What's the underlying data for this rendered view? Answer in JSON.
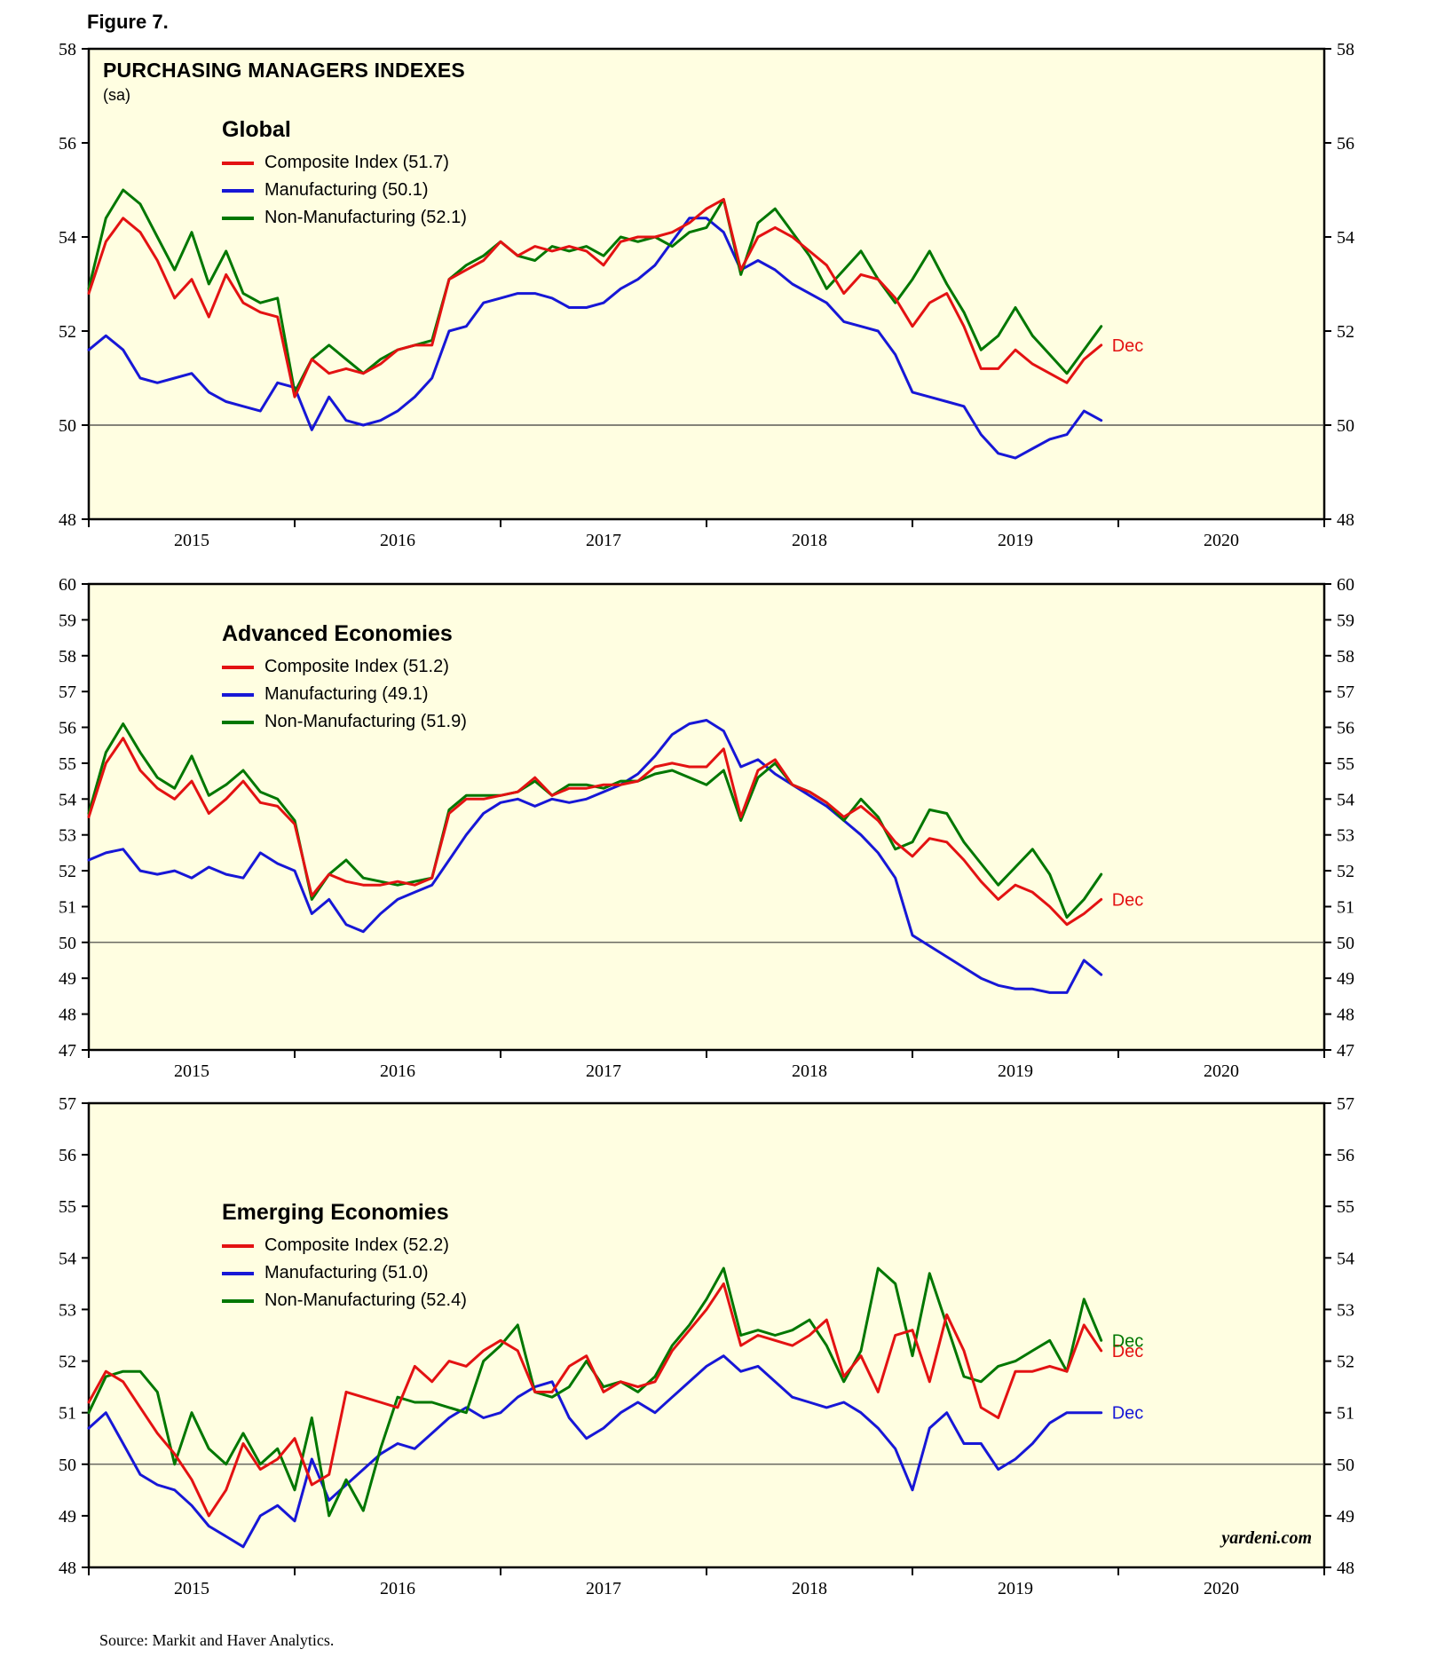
{
  "figure_label": "Figure 7.",
  "header": {
    "title": "PURCHASING MANAGERS INDEXES",
    "subtitle": "(sa)"
  },
  "source_line": "Source:  Markit and Haver Analytics.",
  "watermark": "yardeni.com",
  "colors": {
    "composite": "#e31212",
    "manufacturing": "#1717d6",
    "non_manufacturing": "#007700",
    "plot_bg": "#fffee1",
    "axis": "#000000",
    "zero_line": "#3a3a3a"
  },
  "x_axis": {
    "monthly_start": "2015-01",
    "monthly_end": "2019-12",
    "span_years": 6,
    "year_labels": [
      "2015",
      "2016",
      "2017",
      "2018",
      "2019",
      "2020"
    ]
  },
  "chart_data": [
    {
      "type": "line",
      "title": "Global",
      "ylim": [
        48,
        58
      ],
      "yticks": [
        48,
        50,
        52,
        54,
        56,
        58
      ],
      "hline": 50,
      "grid": false,
      "legend_position": "top-left-inside",
      "series": [
        {
          "name": "Composite Index",
          "legend": "Composite Index (51.7)",
          "color": "composite",
          "end_label": "Dec",
          "values": [
            52.8,
            53.9,
            54.4,
            54.1,
            53.5,
            52.7,
            53.1,
            52.3,
            53.2,
            52.6,
            52.4,
            52.3,
            50.6,
            51.4,
            51.1,
            51.2,
            51.1,
            51.3,
            51.6,
            51.7,
            51.7,
            53.1,
            53.3,
            53.5,
            53.9,
            53.6,
            53.8,
            53.7,
            53.8,
            53.7,
            53.4,
            53.9,
            54.0,
            54.0,
            54.1,
            54.3,
            54.6,
            54.8,
            53.3,
            54.0,
            54.2,
            54.0,
            53.7,
            53.4,
            52.8,
            53.2,
            53.1,
            52.7,
            52.1,
            52.6,
            52.8,
            52.1,
            51.2,
            51.2,
            51.6,
            51.3,
            51.1,
            50.9,
            51.4,
            51.7
          ]
        },
        {
          "name": "Manufacturing",
          "legend": "Manufacturing (50.1)",
          "color": "manufacturing",
          "end_label": null,
          "values": [
            51.6,
            51.9,
            51.6,
            51.0,
            50.9,
            51.0,
            51.1,
            50.7,
            50.5,
            50.4,
            50.3,
            50.9,
            50.8,
            49.9,
            50.6,
            50.1,
            50.0,
            50.1,
            50.3,
            50.6,
            51.0,
            52.0,
            52.1,
            52.6,
            52.7,
            52.8,
            52.8,
            52.7,
            52.5,
            52.5,
            52.6,
            52.9,
            53.1,
            53.4,
            53.9,
            54.4,
            54.4,
            54.1,
            53.3,
            53.5,
            53.3,
            53.0,
            52.8,
            52.6,
            52.2,
            52.1,
            52.0,
            51.5,
            50.7,
            50.6,
            50.5,
            50.4,
            49.8,
            49.4,
            49.3,
            49.5,
            49.7,
            49.8,
            50.3,
            50.1
          ]
        },
        {
          "name": "Non-Manufacturing",
          "legend": "Non-Manufacturing (52.1)",
          "color": "non_manufacturing",
          "end_label": null,
          "values": [
            52.9,
            54.4,
            55.0,
            54.7,
            54.0,
            53.3,
            54.1,
            53.0,
            53.7,
            52.8,
            52.6,
            52.7,
            50.7,
            51.4,
            51.7,
            51.4,
            51.1,
            51.4,
            51.6,
            51.7,
            51.8,
            53.1,
            53.4,
            53.6,
            53.9,
            53.6,
            53.5,
            53.8,
            53.7,
            53.8,
            53.6,
            54.0,
            53.9,
            54.0,
            53.8,
            54.1,
            54.2,
            54.8,
            53.2,
            54.3,
            54.6,
            54.1,
            53.6,
            52.9,
            53.3,
            53.7,
            53.1,
            52.6,
            53.1,
            53.7,
            53.0,
            52.4,
            51.6,
            51.9,
            52.5,
            51.9,
            51.5,
            51.1,
            51.6,
            52.1
          ]
        }
      ]
    },
    {
      "type": "line",
      "title": "Advanced Economies",
      "ylim": [
        47,
        60
      ],
      "yticks": [
        47,
        48,
        49,
        50,
        51,
        52,
        53,
        54,
        55,
        56,
        57,
        58,
        59,
        60
      ],
      "hline": 50,
      "grid": false,
      "legend_position": "top-left-inside",
      "series": [
        {
          "name": "Composite Index",
          "legend": "Composite Index (51.2)",
          "color": "composite",
          "end_label": "Dec",
          "values": [
            53.5,
            55.0,
            55.7,
            54.8,
            54.3,
            54.0,
            54.5,
            53.6,
            54.0,
            54.5,
            53.9,
            53.8,
            53.3,
            51.3,
            51.9,
            51.7,
            51.6,
            51.6,
            51.7,
            51.6,
            51.8,
            53.6,
            54.0,
            54.0,
            54.1,
            54.2,
            54.6,
            54.1,
            54.3,
            54.3,
            54.4,
            54.4,
            54.5,
            54.9,
            55.0,
            54.9,
            54.9,
            55.4,
            53.5,
            54.8,
            55.1,
            54.4,
            54.2,
            53.9,
            53.5,
            53.8,
            53.4,
            52.8,
            52.4,
            52.9,
            52.8,
            52.3,
            51.7,
            51.2,
            51.6,
            51.4,
            51.0,
            50.5,
            50.8,
            51.2
          ]
        },
        {
          "name": "Manufacturing",
          "legend": "Manufacturing (49.1)",
          "color": "manufacturing",
          "end_label": null,
          "values": [
            52.3,
            52.5,
            52.6,
            52.0,
            51.9,
            52.0,
            51.8,
            52.1,
            51.9,
            51.8,
            52.5,
            52.2,
            52.0,
            50.8,
            51.2,
            50.5,
            50.3,
            50.8,
            51.2,
            51.4,
            51.6,
            52.3,
            53.0,
            53.6,
            53.9,
            54.0,
            53.8,
            54.0,
            53.9,
            54.0,
            54.2,
            54.4,
            54.7,
            55.2,
            55.8,
            56.1,
            56.2,
            55.9,
            54.9,
            55.1,
            54.7,
            54.4,
            54.1,
            53.8,
            53.4,
            53.0,
            52.5,
            51.8,
            50.2,
            49.9,
            49.6,
            49.3,
            49.0,
            48.8,
            48.7,
            48.7,
            48.6,
            48.6,
            49.5,
            49.1
          ]
        },
        {
          "name": "Non-Manufacturing",
          "legend": "Non-Manufacturing (51.9)",
          "color": "non_manufacturing",
          "end_label": null,
          "values": [
            53.6,
            55.3,
            56.1,
            55.3,
            54.6,
            54.3,
            55.2,
            54.1,
            54.4,
            54.8,
            54.2,
            54.0,
            53.4,
            51.2,
            51.9,
            52.3,
            51.8,
            51.7,
            51.6,
            51.7,
            51.8,
            53.7,
            54.1,
            54.1,
            54.1,
            54.2,
            54.5,
            54.1,
            54.4,
            54.4,
            54.3,
            54.5,
            54.5,
            54.7,
            54.8,
            54.6,
            54.4,
            54.8,
            53.4,
            54.6,
            55.0,
            54.4,
            54.2,
            53.9,
            53.4,
            54.0,
            53.5,
            52.6,
            52.8,
            53.7,
            53.6,
            52.8,
            52.2,
            51.6,
            52.1,
            52.6,
            51.9,
            50.7,
            51.2,
            51.9
          ]
        }
      ]
    },
    {
      "type": "line",
      "title": "Emerging Economies",
      "ylim": [
        48,
        57
      ],
      "yticks": [
        48,
        49,
        50,
        51,
        52,
        53,
        54,
        55,
        56,
        57
      ],
      "hline": 50,
      "grid": false,
      "legend_position": "mid-left-inside",
      "series": [
        {
          "name": "Composite Index",
          "legend": "Composite Index (52.2)",
          "color": "composite",
          "end_label": "Dec",
          "values": [
            51.2,
            51.8,
            51.6,
            51.1,
            50.6,
            50.2,
            49.7,
            49.0,
            49.5,
            50.4,
            49.9,
            50.1,
            50.5,
            49.6,
            49.8,
            51.4,
            51.3,
            51.2,
            51.1,
            51.9,
            51.6,
            52.0,
            51.9,
            52.2,
            52.4,
            52.2,
            51.4,
            51.4,
            51.9,
            52.1,
            51.4,
            51.6,
            51.5,
            51.6,
            52.2,
            52.6,
            53.0,
            53.5,
            52.3,
            52.5,
            52.4,
            52.3,
            52.5,
            52.8,
            51.7,
            52.1,
            51.4,
            52.5,
            52.6,
            51.6,
            52.9,
            52.2,
            51.1,
            50.9,
            51.8,
            51.8,
            51.9,
            51.8,
            52.7,
            52.2
          ]
        },
        {
          "name": "Manufacturing",
          "legend": "Manufacturing (51.0)",
          "color": "manufacturing",
          "end_label": "Dec",
          "values": [
            50.7,
            51.0,
            50.4,
            49.8,
            49.6,
            49.5,
            49.2,
            48.8,
            48.6,
            48.4,
            49.0,
            49.2,
            48.9,
            50.1,
            49.3,
            49.6,
            49.9,
            50.2,
            50.4,
            50.3,
            50.6,
            50.9,
            51.1,
            50.9,
            51.0,
            51.3,
            51.5,
            51.6,
            50.9,
            50.5,
            50.7,
            51.0,
            51.2,
            51.0,
            51.3,
            51.6,
            51.9,
            52.1,
            51.8,
            51.9,
            51.6,
            51.3,
            51.2,
            51.1,
            51.2,
            51.0,
            50.7,
            50.3,
            49.5,
            50.7,
            51.0,
            50.4,
            50.4,
            49.9,
            50.1,
            50.4,
            50.8,
            51.0,
            51.0,
            51.0
          ]
        },
        {
          "name": "Non-Manufacturing",
          "legend": "Non-Manufacturing (52.4)",
          "color": "non_manufacturing",
          "end_label": "Dec",
          "values": [
            51.0,
            51.7,
            51.8,
            51.8,
            51.4,
            50.0,
            51.0,
            50.3,
            50.0,
            50.6,
            50.0,
            50.3,
            49.5,
            50.9,
            49.0,
            49.7,
            49.1,
            50.3,
            51.3,
            51.2,
            51.2,
            51.1,
            51.0,
            52.0,
            52.3,
            52.7,
            51.4,
            51.3,
            51.5,
            52.0,
            51.5,
            51.6,
            51.4,
            51.7,
            52.3,
            52.7,
            53.2,
            53.8,
            52.5,
            52.6,
            52.5,
            52.6,
            52.8,
            52.3,
            51.6,
            52.2,
            53.8,
            53.5,
            52.1,
            53.7,
            52.7,
            51.7,
            51.6,
            51.9,
            52.0,
            52.2,
            52.4,
            51.8,
            53.2,
            52.4
          ]
        }
      ]
    }
  ]
}
